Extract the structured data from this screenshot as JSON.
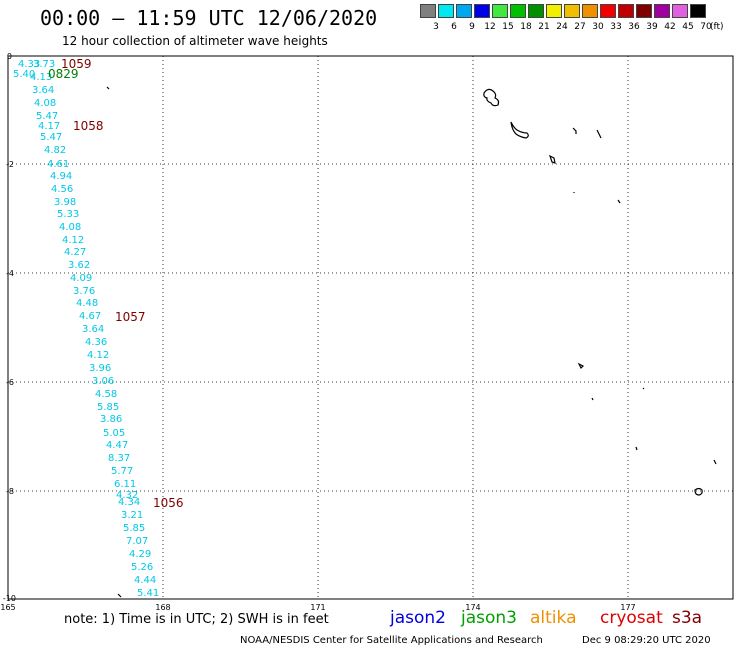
{
  "header": {
    "title": "00:00 – 11:59 UTC 12/06/2020",
    "subtitle": "12 hour collection of altimeter wave heights"
  },
  "legend": {
    "unit": "(ft)",
    "bins": [
      {
        "label": "3",
        "color": "#808080"
      },
      {
        "label": "6",
        "color": "#00e8f0"
      },
      {
        "label": "9",
        "color": "#00a8f0"
      },
      {
        "label": "12",
        "color": "#0000e8"
      },
      {
        "label": "15",
        "color": "#40e840"
      },
      {
        "label": "18",
        "color": "#00c000"
      },
      {
        "label": "21",
        "color": "#009000"
      },
      {
        "label": "24",
        "color": "#f0f000"
      },
      {
        "label": "27",
        "color": "#f0c000"
      },
      {
        "label": "30",
        "color": "#f09000"
      },
      {
        "label": "33",
        "color": "#f00000"
      },
      {
        "label": "36",
        "color": "#c00000"
      },
      {
        "label": "39",
        "color": "#800000"
      },
      {
        "label": "42",
        "color": "#a000a0"
      },
      {
        "label": "45",
        "color": "#e060e0"
      },
      {
        "label": "70",
        "color": "#000000"
      }
    ]
  },
  "axes": {
    "lon_ticks": [
      "165",
      "168",
      "171",
      "174",
      "177"
    ],
    "lat_ticks": [
      "0",
      "-2",
      "-4",
      "-6",
      "-8",
      "-10"
    ]
  },
  "passes": [
    {
      "label": "1059",
      "color": "#800000"
    },
    {
      "label": "0829",
      "color": "#008000"
    },
    {
      "label": "1058",
      "color": "#800000"
    },
    {
      "label": "1057",
      "color": "#800000"
    },
    {
      "label": "1056",
      "color": "#800000"
    }
  ],
  "swh_values": [
    "4.33",
    "3.73",
    "5.40",
    "4.13",
    "3.64",
    "4.08",
    "5.47",
    "4.17",
    "5.47",
    "4.82",
    "4.61",
    "4.94",
    "4.56",
    "3.98",
    "5.33",
    "4.08",
    "4.12",
    "4.27",
    "3.62",
    "4.09",
    "3.76",
    "4.48",
    "4.67",
    "3.64",
    "4.36",
    "4.12",
    "3.96",
    "3.06",
    "4.58",
    "5.85",
    "3.86",
    "5.05",
    "4.47",
    "8.37",
    "5.77",
    "6.11",
    "4.32",
    "4.34",
    "3.21",
    "5.85",
    "7.07",
    "4.29",
    "5.26",
    "4.44",
    "5.41"
  ],
  "footer": {
    "note": "note:  1) Time is in UTC; 2) SWH is in feet",
    "missions": [
      {
        "label": "jason2",
        "color": "#0000e0"
      },
      {
        "label": "jason3",
        "color": "#00a000"
      },
      {
        "label": "altika",
        "color": "#f09000"
      },
      {
        "label": "cryosat",
        "color": "#e00000"
      },
      {
        "label": "s3a",
        "color": "#800000"
      }
    ],
    "credit": "NOAA/NESDIS Center for Satellite Applications and Research",
    "timestamp": "Dec  9 08:29:20 UTC 2020"
  }
}
